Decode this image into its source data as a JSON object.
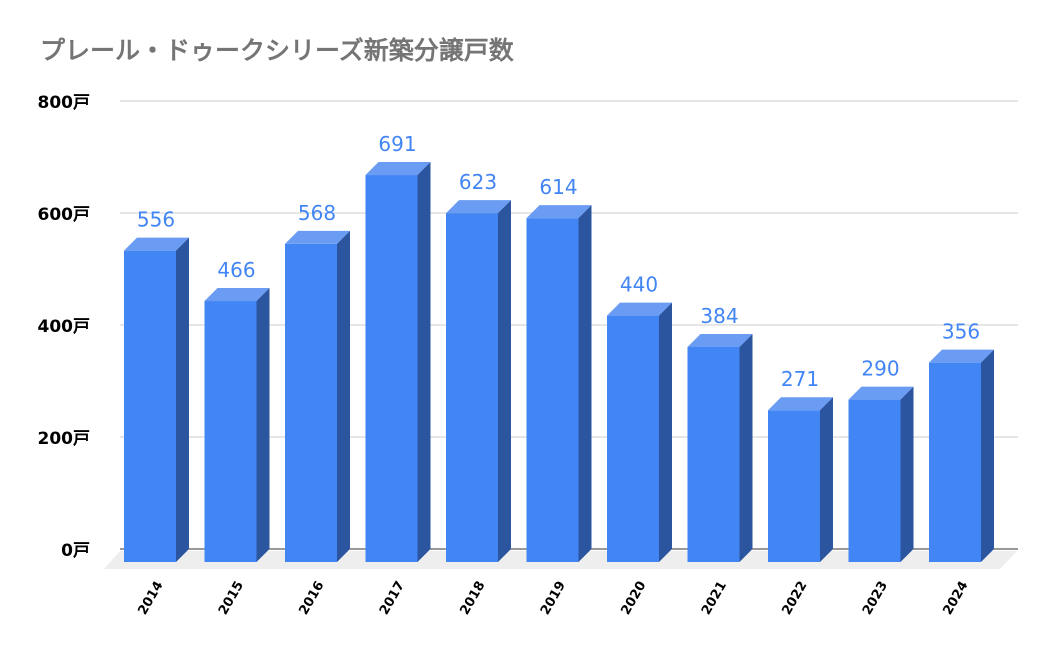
{
  "chart_data": {
    "type": "bar",
    "title": "プレール・ドゥークシリーズ新築分譲戸数",
    "xlabel": "",
    "ylabel": "",
    "categories": [
      "2014",
      "2015",
      "2016",
      "2017",
      "2018",
      "2019",
      "2020",
      "2021",
      "2022",
      "2023",
      "2024"
    ],
    "values": [
      556,
      466,
      568,
      691,
      623,
      614,
      440,
      384,
      271,
      290,
      356
    ],
    "ylim": [
      0,
      800
    ],
    "yticks": [
      "0戸",
      "200戸",
      "400戸",
      "600戸",
      "800戸"
    ],
    "ytick_values": [
      0,
      200,
      400,
      600,
      800
    ],
    "grid": true,
    "legend": "none",
    "style": "3d-bar",
    "colors": {
      "bar_front": "#4285f4",
      "bar_top": "#6a9cf3",
      "bar_side": "#2b559f",
      "label": "#4285f4",
      "grid": "#cccccc",
      "floor": "#eeeeee"
    }
  }
}
